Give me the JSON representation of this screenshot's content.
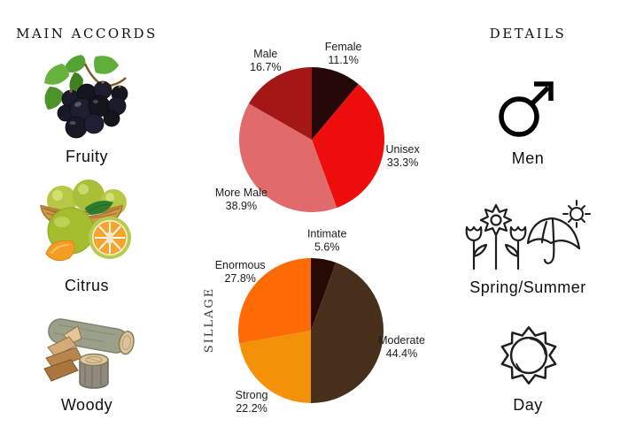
{
  "left_panel": {
    "header": "MAIN ACCORDS",
    "items": [
      {
        "label": "Fruity",
        "icon": "blackcurrant-fruit-photo"
      },
      {
        "label": "Citrus",
        "icon": "citrus-fruits-basket-photo"
      },
      {
        "label": "Woody",
        "icon": "wood-logs-photo"
      }
    ]
  },
  "right_panel": {
    "header": "DETAILS",
    "items": [
      {
        "label": "Men",
        "icon": "mars-male-icon"
      },
      {
        "label": "Spring/Summer",
        "icon": "flowers-umbrella-sun-icon"
      },
      {
        "label": "Day",
        "icon": "sun-icon"
      }
    ]
  },
  "chart_data": [
    {
      "type": "pie",
      "name": "gender-votes",
      "start_angle": "12-oclock",
      "direction": "clockwise",
      "ylabel": "",
      "label_format": "{label} {value}%",
      "slices": [
        {
          "label": "Female",
          "value": 11.1,
          "color": "#250707"
        },
        {
          "label": "Unisex",
          "value": 33.3,
          "color": "#ee0d0d"
        },
        {
          "label": "More Male",
          "value": 38.9,
          "color": "#e16a6a"
        },
        {
          "label": "Male",
          "value": 16.7,
          "color": "#a31717"
        }
      ]
    },
    {
      "type": "pie",
      "name": "sillage-votes",
      "start_angle": "12-oclock",
      "direction": "clockwise",
      "ylabel": "SILLAGE",
      "label_format": "{label} {value}%",
      "slices": [
        {
          "label": "Intimate",
          "value": 5.6,
          "color": "#270a05"
        },
        {
          "label": "Moderate",
          "value": 44.4,
          "color": "#47301b"
        },
        {
          "label": "Strong",
          "value": 22.2,
          "color": "#f39208"
        },
        {
          "label": "Enormous",
          "value": 27.8,
          "color": "#fd6a06"
        }
      ]
    }
  ]
}
